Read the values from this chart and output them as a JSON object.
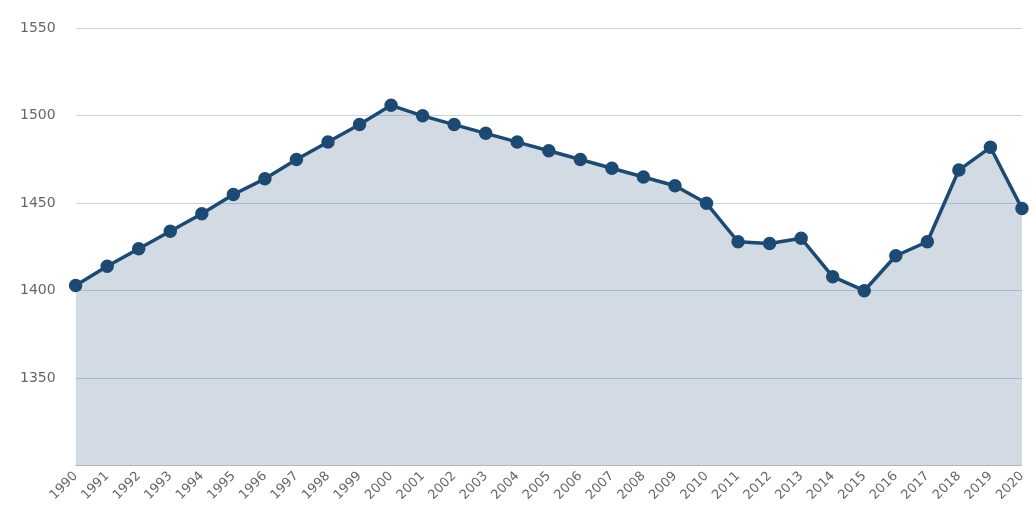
{
  "chart_data": {
    "type": "area",
    "categories": [
      "1990",
      "1991",
      "1992",
      "1993",
      "1994",
      "1995",
      "1996",
      "1997",
      "1998",
      "1999",
      "2000",
      "2001",
      "2002",
      "2003",
      "2004",
      "2005",
      "2006",
      "2007",
      "2008",
      "2009",
      "2010",
      "2011",
      "2012",
      "2013",
      "2014",
      "2015",
      "2016",
      "2017",
      "2018",
      "2019",
      "2020"
    ],
    "series": [
      {
        "color": "#1d4a72",
        "values": [
          1403,
          1414,
          1424,
          1434,
          1444,
          1455,
          1464,
          1475,
          1485,
          1495,
          1506,
          1500,
          1495,
          1490,
          1485,
          1480,
          1475,
          1470,
          1465,
          1460,
          1450,
          1428,
          1427,
          1430,
          1408,
          1400,
          1420,
          1428,
          1469,
          1482,
          1447
        ]
      }
    ],
    "ylim": [
      1300,
      1550
    ],
    "yticks": [
      {
        "value": 1300,
        "label": null
      },
      1350,
      1400,
      1450,
      1500,
      1550
    ],
    "grid": "y",
    "marker": "circle",
    "line_style": "solid"
  }
}
